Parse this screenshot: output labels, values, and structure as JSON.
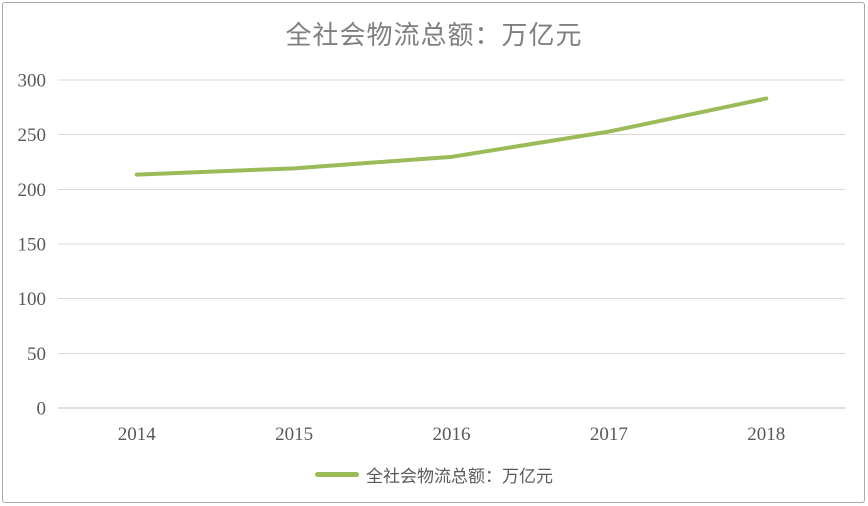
{
  "frame": {
    "background": "#ffffff",
    "border_color": "#a9a9a9"
  },
  "chart_data": {
    "type": "line",
    "title": "全社会物流总额：万亿元",
    "categories": [
      "2014",
      "2015",
      "2016",
      "2017",
      "2018"
    ],
    "series": [
      {
        "name": "全社会物流总额：万亿元",
        "color": "#9bbb59",
        "values": [
          213.5,
          219.2,
          229.7,
          252.8,
          283.1
        ]
      }
    ],
    "xlabel": "",
    "ylabel": "",
    "ylim": [
      0,
      300
    ],
    "y_ticks": [
      0,
      50,
      100,
      150,
      200,
      250,
      300
    ],
    "grid": true,
    "legend_position": "bottom",
    "colors": {
      "line": "#9bbb59",
      "gridline": "#d9d9d9",
      "axis_line": "#bfbfbf",
      "tick_label": "#595959",
      "title": "#7f7f7f",
      "legend_text": "#595959"
    }
  }
}
